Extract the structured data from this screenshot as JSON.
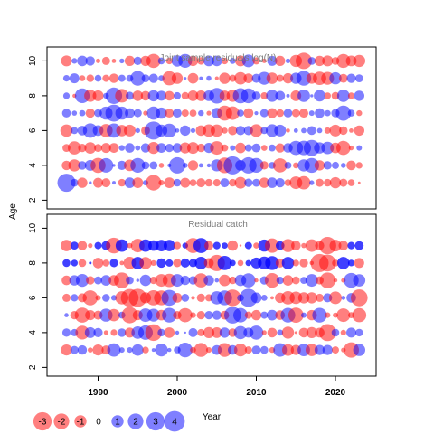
{
  "chart_data": [
    {
      "type": "scatter",
      "subtype": "bubble-residuals",
      "title": "Joint sample residuals log(N)",
      "ylabel": "Age",
      "x_range": [
        1986,
        2023
      ],
      "ylim": [
        1.5,
        10.8
      ],
      "ages": [
        3,
        4,
        5,
        6,
        7,
        8,
        9,
        10
      ],
      "yticks": [
        2,
        4,
        6,
        8,
        10
      ],
      "positive_color": "#0000ff",
      "negative_color": "#ff0000"
    },
    {
      "type": "scatter",
      "subtype": "bubble-residuals",
      "title": "Residual catch",
      "ylabel": "Age",
      "x_range": [
        1986,
        2023
      ],
      "ylim": [
        1.5,
        10.8
      ],
      "ages": [
        3,
        4,
        5,
        6,
        7,
        8,
        9
      ],
      "yticks": [
        2,
        4,
        6,
        8,
        10
      ],
      "positive_color": "#0000ff",
      "negative_color": "#ff0000"
    }
  ],
  "axes": {
    "ylabel": "Age",
    "xlabel": "Year",
    "xticks": [
      1990,
      2000,
      2010,
      2020
    ]
  },
  "legend": {
    "values": [
      -3,
      -2,
      -1,
      0,
      1,
      2,
      3,
      4
    ],
    "labels": [
      "-3",
      "-2",
      "-1",
      "0",
      "1",
      "2",
      "3",
      "4"
    ]
  }
}
